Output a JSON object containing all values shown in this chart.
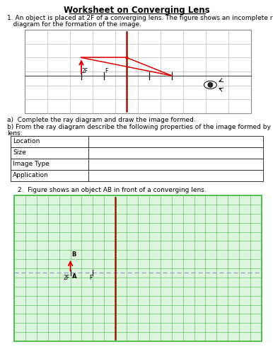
{
  "title": "Worksheet on Converging Lens",
  "q1_line1": "1. An object is placed at 2F of a converging lens. The figure shows an incomplete ray",
  "q1_line2": "   diagram for the formation of the image.",
  "qa_text": "a)  Complete the ray diagram and draw the image formed.",
  "qb_line1": "b) From the ray diagram describe the following properties of the image formed by the",
  "qb_line2": "lens:",
  "table_rows": [
    "Location",
    "Size",
    "Image Type",
    "Application"
  ],
  "q2_text": "2.  Figure shows an object AB in front of a converging lens.",
  "bg_color": "#ffffff",
  "grid1_color": "#bbbbbb",
  "grid2_color": "#44bb44",
  "grid2_bg": "#ddf5dd",
  "lens1_color": "#8b2000",
  "axis_color": "#555555",
  "ray_color": "#dd0000",
  "dashed_color": "#9999cc",
  "table_border": "#333333",
  "d1_cols": 10,
  "d1_rows": 6,
  "d2_cols": 22,
  "d2_rows": 16
}
